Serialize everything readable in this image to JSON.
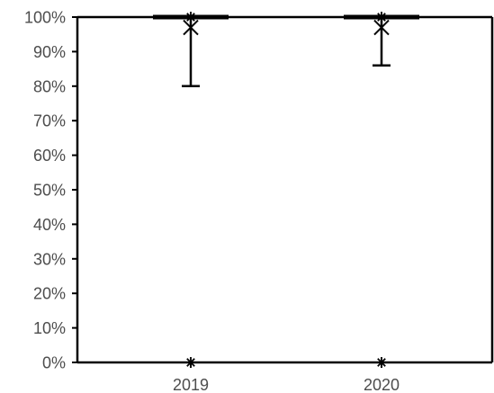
{
  "chart_data": {
    "type": "box",
    "categories": [
      "2019",
      "2020"
    ],
    "y_tick_labels": [
      "0%",
      "10%",
      "20%",
      "30%",
      "40%",
      "50%",
      "60%",
      "70%",
      "80%",
      "90%",
      "100%"
    ],
    "ylim": [
      0,
      100
    ],
    "y_unit": "percent",
    "grid": false,
    "legend": "none",
    "boxes": [
      {
        "category": "2019",
        "min": 80,
        "q1": 100,
        "median": 100,
        "q3": 100,
        "max": 100,
        "mean": 97,
        "outliers": [
          0,
          100
        ]
      },
      {
        "category": "2020",
        "min": 86,
        "q1": 100,
        "median": 100,
        "q3": 100,
        "max": 100,
        "mean": 97,
        "outliers": [
          0,
          100
        ]
      }
    ],
    "colors": {
      "axis": "#000000",
      "tick_text": "#4d4d4d",
      "marks": "#000000",
      "background": "#ffffff"
    }
  }
}
